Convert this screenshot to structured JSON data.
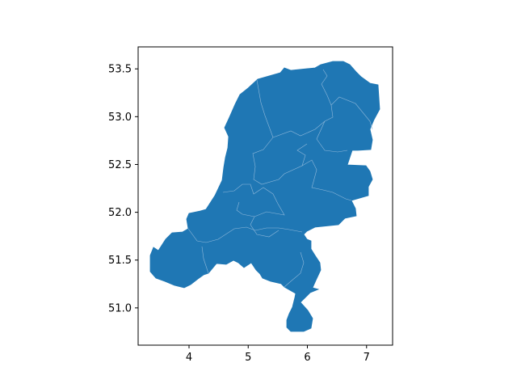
{
  "chart_data": {
    "type": "map",
    "title": "",
    "xlabel": "",
    "ylabel": "",
    "xlim": [
      3.14,
      7.44
    ],
    "ylim": [
      50.61,
      53.73
    ],
    "x_ticks": [
      4,
      5,
      6,
      7
    ],
    "y_ticks": [
      51.0,
      51.5,
      52.0,
      52.5,
      53.0,
      53.5
    ],
    "x_tick_labels": [
      "4",
      "5",
      "6",
      "7"
    ],
    "y_tick_labels": [
      "51.0",
      "51.5",
      "52.0",
      "52.5",
      "53.0",
      "53.5"
    ],
    "grid": false,
    "legend": "none",
    "fill_color": "#1f77b4",
    "boundary_color": "#8fb8da",
    "outline_lonlat": [
      [
        3.36,
        51.37
      ],
      [
        3.58,
        51.3
      ],
      [
        3.9,
        51.38
      ],
      [
        4.22,
        51.37
      ],
      [
        4.4,
        51.4
      ],
      [
        4.55,
        51.48
      ],
      [
        4.78,
        51.5
      ],
      [
        5.05,
        51.47
      ],
      [
        5.25,
        51.45
      ],
      [
        5.5,
        51.42
      ],
      [
        5.7,
        51.38
      ],
      [
        5.86,
        51.52
      ],
      [
        6.09,
        51.63
      ],
      [
        6.21,
        51.5
      ],
      [
        6.2,
        51.32
      ],
      [
        6.05,
        51.17
      ],
      [
        5.96,
        51.03
      ],
      [
        5.99,
        50.87
      ],
      [
        5.92,
        50.77
      ],
      [
        5.75,
        50.78
      ],
      [
        5.66,
        50.82
      ],
      [
        5.64,
        51.04
      ],
      [
        5.76,
        51.14
      ],
      [
        5.52,
        51.27
      ],
      [
        5.35,
        51.28
      ],
      [
        5.12,
        51.43
      ],
      [
        4.8,
        51.41
      ],
      [
        4.62,
        51.44
      ],
      [
        4.4,
        51.33
      ],
      [
        4.0,
        51.22
      ],
      [
        3.8,
        51.22
      ],
      [
        3.65,
        51.24
      ],
      [
        3.38,
        51.27
      ],
      [
        3.3,
        51.43
      ],
      [
        3.37,
        51.36
      ],
      [
        3.58,
        51.45
      ],
      [
        3.86,
        51.59
      ],
      [
        3.87,
        51.74
      ],
      [
        3.98,
        51.82
      ],
      [
        4.1,
        51.93
      ],
      [
        4.06,
        51.97
      ],
      [
        4.35,
        52.12
      ],
      [
        4.48,
        52.23
      ],
      [
        4.57,
        52.47
      ],
      [
        4.62,
        52.58
      ],
      [
        4.68,
        52.88
      ],
      [
        4.73,
        52.97
      ],
      [
        4.82,
        53.04
      ],
      [
        5.0,
        53.2
      ],
      [
        5.23,
        53.32
      ],
      [
        5.6,
        53.43
      ],
      [
        6.0,
        53.47
      ],
      [
        6.38,
        53.45
      ],
      [
        6.65,
        53.56
      ],
      [
        6.94,
        53.5
      ],
      [
        7.22,
        53.32
      ],
      [
        7.22,
        53.05
      ],
      [
        7.05,
        52.83
      ],
      [
        7.0,
        52.65
      ],
      [
        6.75,
        52.65
      ],
      [
        6.7,
        52.46
      ],
      [
        7.0,
        52.48
      ],
      [
        7.08,
        52.34
      ],
      [
        6.95,
        52.18
      ],
      [
        6.85,
        52.1
      ],
      [
        6.72,
        51.98
      ],
      [
        6.72,
        51.85
      ],
      [
        6.43,
        51.85
      ],
      [
        6.15,
        51.88
      ],
      [
        5.95,
        51.81
      ],
      [
        5.92,
        51.62
      ],
      [
        5.5,
        51.43
      ],
      [
        4.78,
        51.4
      ],
      [
        3.36,
        51.37
      ]
    ]
  }
}
